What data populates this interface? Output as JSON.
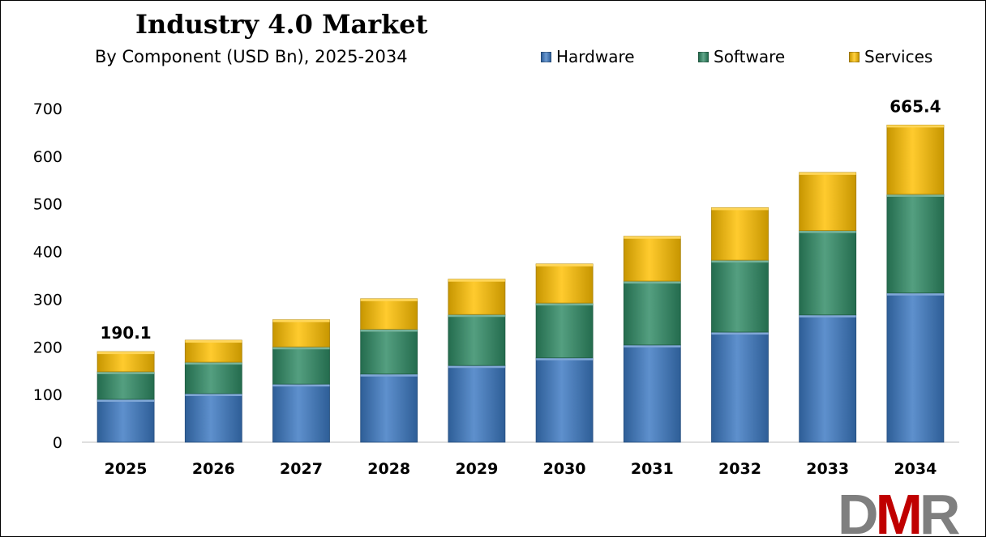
{
  "chart_data": {
    "type": "bar",
    "stacked": true,
    "title": "Industry 4.0 Market",
    "subtitle": "By Component (USD Bn), 2025-2034",
    "categories": [
      "2025",
      "2026",
      "2027",
      "2028",
      "2029",
      "2030",
      "2031",
      "2032",
      "2033",
      "2034"
    ],
    "series": [
      {
        "name": "Hardware",
        "color": "#3B78C2",
        "values": [
          90,
          102,
          122,
          143,
          161,
          177,
          204,
          231,
          267,
          313
        ]
      },
      {
        "name": "Software",
        "color": "#2E8A64",
        "values": [
          58,
          66,
          78,
          94,
          107,
          115,
          134,
          151,
          177,
          207
        ]
      },
      {
        "name": "Services",
        "color": "#FFC000",
        "values": [
          42.1,
          46,
          57,
          64,
          74,
          82,
          94,
          110,
          122,
          145.4
        ]
      }
    ],
    "data_labels": [
      {
        "category": "2025",
        "text": "190.1"
      },
      {
        "category": "2034",
        "text": "665.4"
      }
    ],
    "yticks": [
      "0",
      "100",
      "200",
      "300",
      "400",
      "500",
      "600",
      "700"
    ],
    "ylim": [
      0,
      700
    ],
    "grid": false,
    "legend_position": "top-right"
  },
  "logo": {
    "text": "DMR",
    "colors": [
      "#7F7F7F",
      "#C00000",
      "#7F7F7F"
    ]
  }
}
